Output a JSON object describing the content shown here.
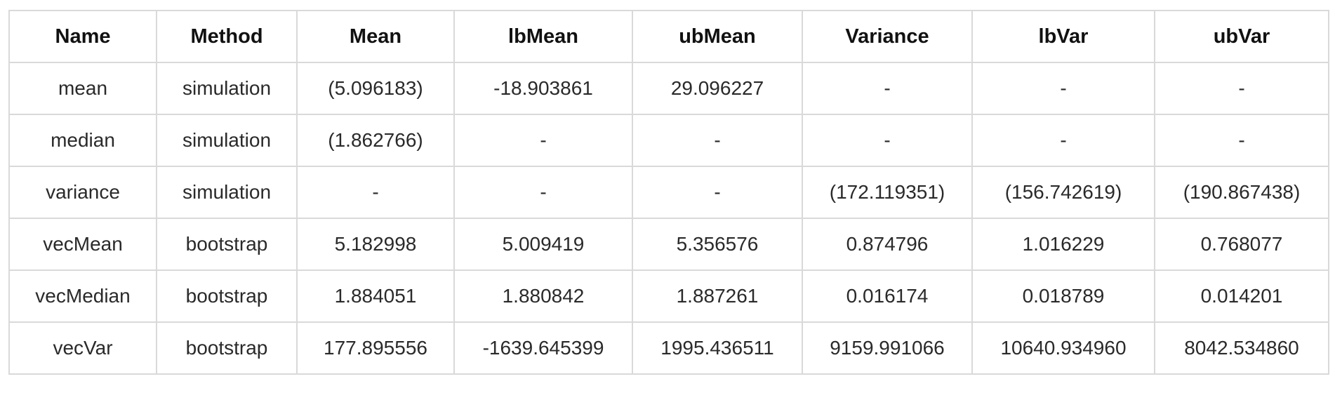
{
  "table": {
    "headers": [
      "Name",
      "Method",
      "Mean",
      "lbMean",
      "ubMean",
      "Variance",
      "lbVar",
      "ubVar"
    ],
    "rows": [
      [
        "mean",
        "simulation",
        "(5.096183)",
        "-18.903861",
        "29.096227",
        "-",
        "-",
        "-"
      ],
      [
        "median",
        "simulation",
        "(1.862766)",
        "-",
        "-",
        "-",
        "-",
        "-"
      ],
      [
        "variance",
        "simulation",
        "-",
        "-",
        "-",
        "(172.119351)",
        "(156.742619)",
        "(190.867438)"
      ],
      [
        "vecMean",
        "bootstrap",
        "5.182998",
        "5.009419",
        "5.356576",
        "0.874796",
        "1.016229",
        "0.768077"
      ],
      [
        "vecMedian",
        "bootstrap",
        "1.884051",
        "1.880842",
        "1.887261",
        "0.016174",
        "0.018789",
        "0.014201"
      ],
      [
        "vecVar",
        "bootstrap",
        "177.895556",
        "-1639.645399",
        "1995.436511",
        "9159.991066",
        "10640.934960",
        "8042.534860"
      ]
    ]
  },
  "colors": {
    "border": "#d9d9d9",
    "text": "#222222",
    "background": "#ffffff"
  }
}
